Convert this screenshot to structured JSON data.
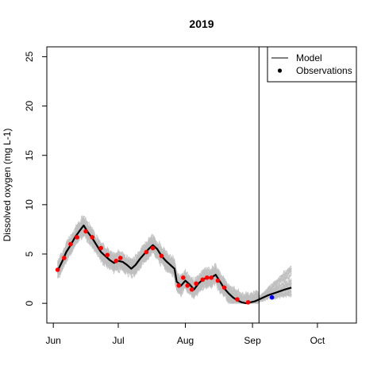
{
  "chart_data": {
    "type": "line",
    "title": "2019",
    "xlabel": "",
    "ylabel": "Dissolved oxygen (mg L-1)",
    "xlim": [
      "2019-05-29",
      "2019-10-19"
    ],
    "ylim": [
      -2,
      26
    ],
    "x_ticks": [
      {
        "date": "2019-06-01",
        "label": "Jun"
      },
      {
        "date": "2019-07-01",
        "label": "Jul"
      },
      {
        "date": "2019-08-01",
        "label": "Aug"
      },
      {
        "date": "2019-09-01",
        "label": "Sep"
      },
      {
        "date": "2019-10-01",
        "label": "Oct"
      }
    ],
    "y_ticks": [
      0,
      5,
      10,
      15,
      20,
      25
    ],
    "forecast_start": "2019-09-04",
    "legend": {
      "position": "top-right",
      "entries": [
        {
          "label": "Model",
          "symbol": "line"
        },
        {
          "label": "Observations",
          "symbol": "point"
        }
      ]
    },
    "colors": {
      "model": "#000000",
      "ensemble": "#bebebe",
      "observations_fit": "#ff0000",
      "observations_forecast": "#0000ff"
    },
    "series": [
      {
        "name": "Model",
        "x": [
          "2019-06-03",
          "2019-06-05",
          "2019-06-07",
          "2019-06-09",
          "2019-06-11",
          "2019-06-13",
          "2019-06-15",
          "2019-06-17",
          "2019-06-19",
          "2019-06-21",
          "2019-06-23",
          "2019-06-25",
          "2019-06-27",
          "2019-06-29",
          "2019-07-01",
          "2019-07-03",
          "2019-07-05",
          "2019-07-07",
          "2019-07-09",
          "2019-07-11",
          "2019-07-13",
          "2019-07-15",
          "2019-07-17",
          "2019-07-19",
          "2019-07-21",
          "2019-07-23",
          "2019-07-25",
          "2019-07-27",
          "2019-07-28",
          "2019-07-30",
          "2019-08-01",
          "2019-08-03",
          "2019-08-05",
          "2019-08-07",
          "2019-08-09",
          "2019-08-11",
          "2019-08-13",
          "2019-08-15",
          "2019-08-17",
          "2019-08-19",
          "2019-08-21",
          "2019-08-23",
          "2019-08-25",
          "2019-08-27",
          "2019-08-29",
          "2019-08-31",
          "2019-09-02",
          "2019-09-04",
          "2019-09-08",
          "2019-09-12",
          "2019-09-16",
          "2019-09-19"
        ],
        "y": [
          3.3,
          4.2,
          5.2,
          5.9,
          6.7,
          7.3,
          7.9,
          7.2,
          6.6,
          5.9,
          5.2,
          4.8,
          4.4,
          4.1,
          4.3,
          4.2,
          3.9,
          3.5,
          3.9,
          4.5,
          5.0,
          5.5,
          5.9,
          5.5,
          4.8,
          4.3,
          3.9,
          3.5,
          2.2,
          1.8,
          2.3,
          1.9,
          1.4,
          2.0,
          2.4,
          2.6,
          2.6,
          2.9,
          2.2,
          1.5,
          1.0,
          0.6,
          0.3,
          0.1,
          0.0,
          0.1,
          0.2,
          0.4,
          0.8,
          1.1,
          1.4,
          1.6
        ]
      },
      {
        "name": "Observations",
        "x": [
          "2019-06-03",
          "2019-06-06",
          "2019-06-09",
          "2019-06-12",
          "2019-06-16",
          "2019-06-19",
          "2019-06-23",
          "2019-06-26",
          "2019-06-30",
          "2019-07-02",
          "2019-07-14",
          "2019-07-17",
          "2019-07-21",
          "2019-07-29",
          "2019-07-31",
          "2019-08-02",
          "2019-08-04",
          "2019-08-06",
          "2019-08-09",
          "2019-08-11",
          "2019-08-13",
          "2019-08-16",
          "2019-08-19",
          "2019-08-25",
          "2019-08-30"
        ],
        "y": [
          3.4,
          4.6,
          6.0,
          6.7,
          7.3,
          6.7,
          5.6,
          4.9,
          4.3,
          4.6,
          5.2,
          5.6,
          4.8,
          1.8,
          2.6,
          1.8,
          1.4,
          2.0,
          2.4,
          2.6,
          2.6,
          2.3,
          1.6,
          0.4,
          0.1
        ]
      },
      {
        "x": [
          "2019-09-10"
        ],
        "y": [
          0.6
        ]
      }
    ]
  }
}
